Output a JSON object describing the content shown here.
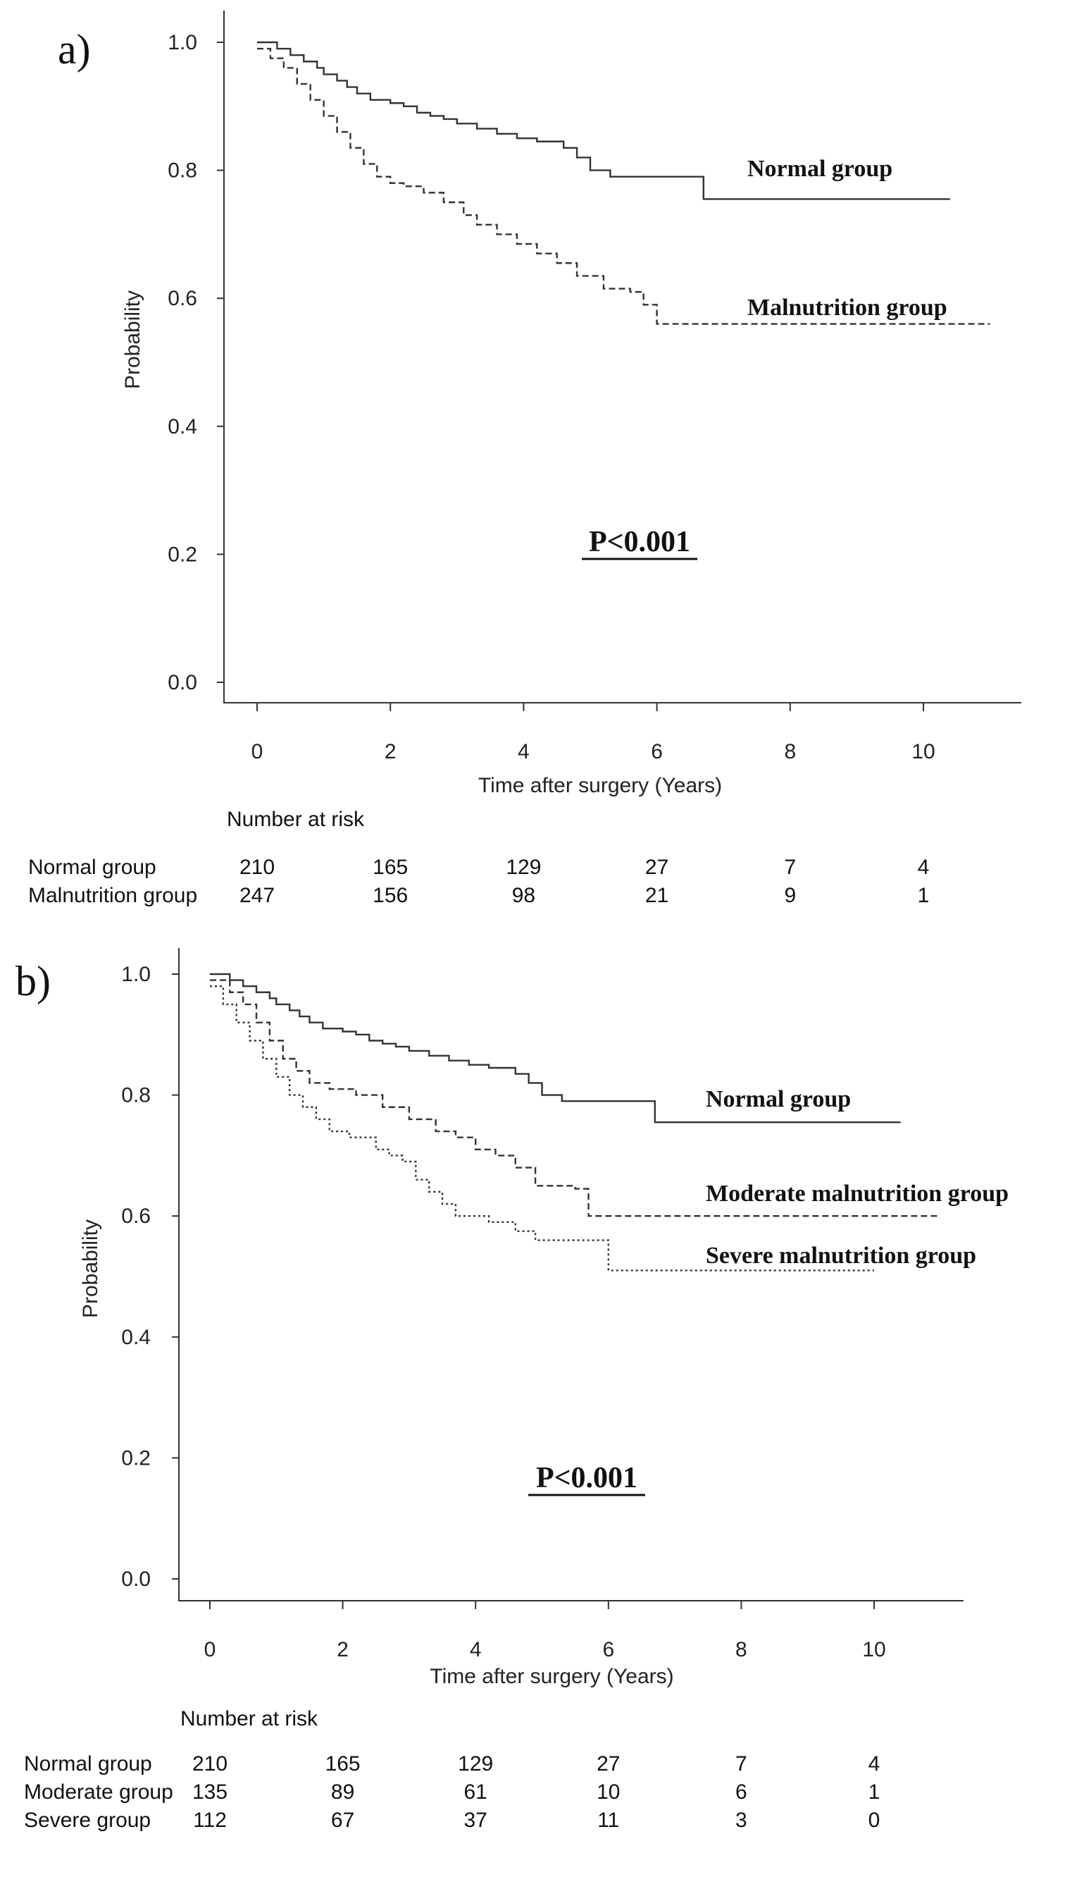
{
  "chart_data": [
    {
      "panel_label": "a)",
      "type": "line",
      "subtype": "kaplan-meier step",
      "xlabel": "Time after surgery (Years)",
      "ylabel": "Probability",
      "xlim": [
        -0.5,
        11.5
      ],
      "ylim": [
        -0.05,
        1.05
      ],
      "x_ticks": [
        "0",
        "2",
        "4",
        "6",
        "8",
        "10"
      ],
      "y_ticks": [
        "0.0",
        "0.2",
        "0.4",
        "0.6",
        "0.8",
        "1.0"
      ],
      "p_value": "P<0.001",
      "series": [
        {
          "name": "Normal group",
          "style": "solid",
          "points": [
            [
              0,
              1.0
            ],
            [
              0.3,
              0.99
            ],
            [
              0.5,
              0.98
            ],
            [
              0.7,
              0.97
            ],
            [
              0.9,
              0.96
            ],
            [
              1.0,
              0.95
            ],
            [
              1.2,
              0.94
            ],
            [
              1.35,
              0.93
            ],
            [
              1.5,
              0.92
            ],
            [
              1.7,
              0.91
            ],
            [
              2.0,
              0.905
            ],
            [
              2.2,
              0.9
            ],
            [
              2.4,
              0.89
            ],
            [
              2.6,
              0.885
            ],
            [
              2.8,
              0.88
            ],
            [
              3.0,
              0.873
            ],
            [
              3.3,
              0.865
            ],
            [
              3.6,
              0.857
            ],
            [
              3.9,
              0.85
            ],
            [
              4.2,
              0.845
            ],
            [
              4.6,
              0.835
            ],
            [
              4.8,
              0.82
            ],
            [
              5.0,
              0.8
            ],
            [
              5.3,
              0.79
            ],
            [
              6.5,
              0.79
            ],
            [
              6.7,
              0.755
            ],
            [
              10.4,
              0.755
            ]
          ]
        },
        {
          "name": "Malnutrition group",
          "style": "dashed",
          "points": [
            [
              0,
              0.99
            ],
            [
              0.2,
              0.975
            ],
            [
              0.4,
              0.96
            ],
            [
              0.6,
              0.935
            ],
            [
              0.8,
              0.91
            ],
            [
              1.0,
              0.885
            ],
            [
              1.2,
              0.86
            ],
            [
              1.4,
              0.835
            ],
            [
              1.6,
              0.81
            ],
            [
              1.8,
              0.79
            ],
            [
              2.0,
              0.78
            ],
            [
              2.2,
              0.775
            ],
            [
              2.5,
              0.765
            ],
            [
              2.8,
              0.75
            ],
            [
              3.1,
              0.73
            ],
            [
              3.3,
              0.715
            ],
            [
              3.6,
              0.7
            ],
            [
              3.9,
              0.685
            ],
            [
              4.2,
              0.67
            ],
            [
              4.5,
              0.655
            ],
            [
              4.8,
              0.635
            ],
            [
              5.2,
              0.615
            ],
            [
              5.6,
              0.61
            ],
            [
              5.8,
              0.59
            ],
            [
              6.0,
              0.56
            ],
            [
              11.0,
              0.56
            ]
          ]
        }
      ],
      "number_at_risk": {
        "title": "Number at risk",
        "rows": [
          {
            "label": "Normal group",
            "values": [
              "210",
              "165",
              "129",
              "27",
              "7",
              "4"
            ]
          },
          {
            "label": "Malnutrition group",
            "values": [
              "247",
              "156",
              "98",
              "21",
              "9",
              "1"
            ]
          }
        ]
      }
    },
    {
      "panel_label": "b)",
      "type": "line",
      "subtype": "kaplan-meier step",
      "xlabel": "Time after surgery (Years)",
      "ylabel": "Probability",
      "xlim": [
        -0.5,
        11.5
      ],
      "ylim": [
        -0.05,
        1.05
      ],
      "x_ticks": [
        "0",
        "2",
        "4",
        "6",
        "8",
        "10"
      ],
      "y_ticks": [
        "0.0",
        "0.2",
        "0.4",
        "0.6",
        "0.8",
        "1.0"
      ],
      "p_value": "P<0.001",
      "series": [
        {
          "name": "Normal group",
          "style": "solid",
          "points": [
            [
              0,
              1.0
            ],
            [
              0.3,
              0.99
            ],
            [
              0.5,
              0.98
            ],
            [
              0.7,
              0.97
            ],
            [
              0.9,
              0.96
            ],
            [
              1.0,
              0.95
            ],
            [
              1.2,
              0.94
            ],
            [
              1.35,
              0.93
            ],
            [
              1.5,
              0.92
            ],
            [
              1.7,
              0.91
            ],
            [
              2.0,
              0.905
            ],
            [
              2.2,
              0.9
            ],
            [
              2.4,
              0.89
            ],
            [
              2.6,
              0.885
            ],
            [
              2.8,
              0.88
            ],
            [
              3.0,
              0.873
            ],
            [
              3.3,
              0.865
            ],
            [
              3.6,
              0.857
            ],
            [
              3.9,
              0.85
            ],
            [
              4.2,
              0.845
            ],
            [
              4.6,
              0.835
            ],
            [
              4.8,
              0.82
            ],
            [
              5.0,
              0.8
            ],
            [
              5.3,
              0.79
            ],
            [
              6.5,
              0.79
            ],
            [
              6.7,
              0.755
            ],
            [
              10.4,
              0.755
            ]
          ]
        },
        {
          "name": "Moderate malnutrition group",
          "style": "dashed",
          "points": [
            [
              0,
              0.99
            ],
            [
              0.3,
              0.97
            ],
            [
              0.5,
              0.95
            ],
            [
              0.7,
              0.92
            ],
            [
              0.9,
              0.89
            ],
            [
              1.1,
              0.86
            ],
            [
              1.3,
              0.84
            ],
            [
              1.5,
              0.82
            ],
            [
              1.8,
              0.81
            ],
            [
              2.2,
              0.8
            ],
            [
              2.6,
              0.78
            ],
            [
              3.0,
              0.76
            ],
            [
              3.4,
              0.74
            ],
            [
              3.7,
              0.73
            ],
            [
              4.0,
              0.71
            ],
            [
              4.3,
              0.7
            ],
            [
              4.6,
              0.68
            ],
            [
              4.9,
              0.65
            ],
            [
              5.5,
              0.645
            ],
            [
              5.7,
              0.6
            ],
            [
              11.0,
              0.6
            ]
          ]
        },
        {
          "name": "Severe malnutrition group",
          "style": "dotted",
          "points": [
            [
              0,
              0.98
            ],
            [
              0.2,
              0.95
            ],
            [
              0.4,
              0.92
            ],
            [
              0.6,
              0.89
            ],
            [
              0.8,
              0.86
            ],
            [
              1.0,
              0.83
            ],
            [
              1.2,
              0.8
            ],
            [
              1.4,
              0.78
            ],
            [
              1.6,
              0.76
            ],
            [
              1.8,
              0.74
            ],
            [
              2.1,
              0.73
            ],
            [
              2.5,
              0.71
            ],
            [
              2.7,
              0.7
            ],
            [
              2.9,
              0.69
            ],
            [
              3.1,
              0.66
            ],
            [
              3.3,
              0.64
            ],
            [
              3.5,
              0.62
            ],
            [
              3.7,
              0.6
            ],
            [
              4.2,
              0.59
            ],
            [
              4.6,
              0.575
            ],
            [
              4.9,
              0.56
            ],
            [
              6.0,
              0.51
            ],
            [
              10.0,
              0.51
            ]
          ]
        }
      ],
      "number_at_risk": {
        "title": "Number at risk",
        "rows": [
          {
            "label": "Normal group",
            "values": [
              "210",
              "165",
              "129",
              "27",
              "7",
              "4"
            ]
          },
          {
            "label": "Moderate group",
            "values": [
              "135",
              "89",
              "61",
              "10",
              "6",
              "1"
            ]
          },
          {
            "label": "Severe group",
            "values": [
              "112",
              "67",
              "37",
              "11",
              "3",
              "0"
            ]
          }
        ]
      }
    }
  ]
}
